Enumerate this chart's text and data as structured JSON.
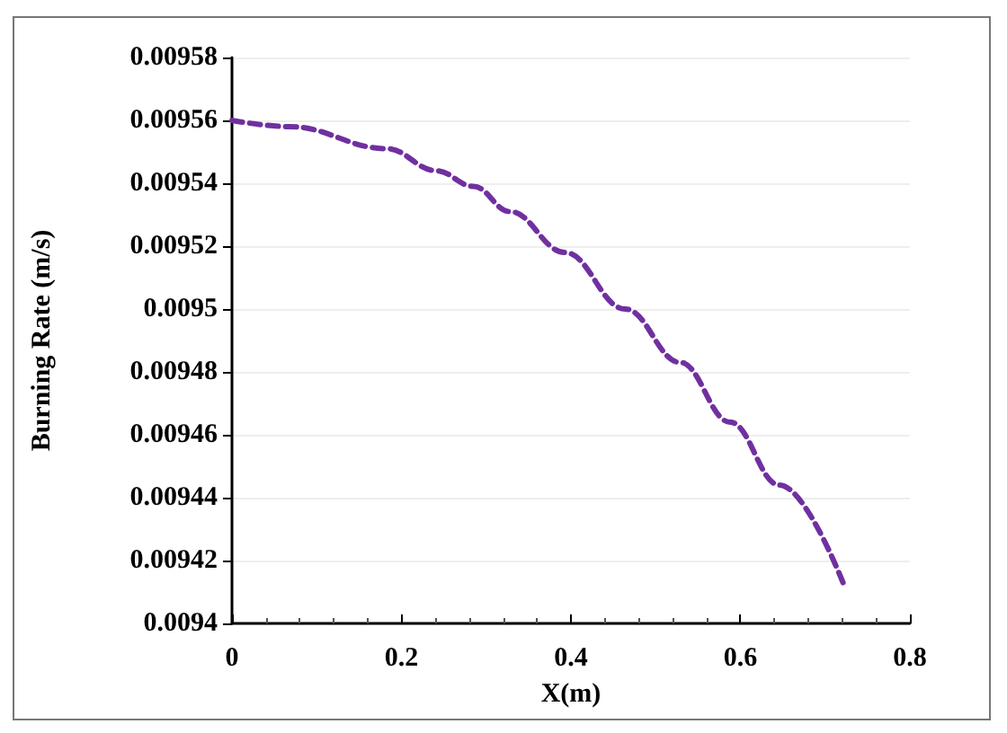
{
  "chart_data": {
    "type": "line",
    "xlabel": "X(m)",
    "ylabel": "Burning Rate (m/s)",
    "series": [
      {
        "color": "#7030a0",
        "x": [
          0,
          0.068,
          0.183,
          0.241,
          0.285,
          0.328,
          0.393,
          0.464,
          0.529,
          0.588,
          0.646,
          0.724
        ],
        "values": [
          0.00956,
          0.009558,
          0.009551,
          0.009544,
          0.009539,
          0.009531,
          0.009518,
          0.0095,
          0.009483,
          0.009464,
          0.009444,
          0.009411
        ]
      }
    ],
    "xlim": [
      0,
      0.8
    ],
    "xticks": [
      0,
      0.2,
      0.4,
      0.6,
      0.8
    ],
    "ylim": [
      0.0094,
      0.00958
    ],
    "yticks": [
      0.0094,
      0.00942,
      0.00944,
      0.00946,
      0.00948,
      0.0095,
      0.00952,
      0.00954,
      0.00956,
      0.00958
    ],
    "grid": "y",
    "marker": "none",
    "line_style": "dashed"
  }
}
